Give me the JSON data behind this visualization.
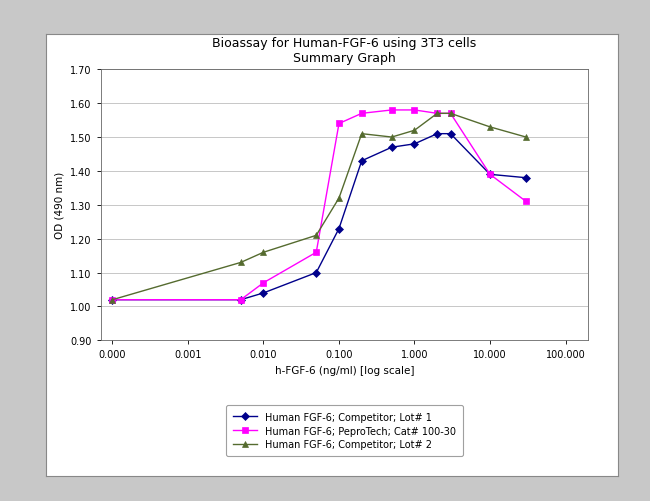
{
  "title_line1": "Bioassay for Human-FGF-6 using 3T3 cells",
  "title_line2": "Summary Graph",
  "xlabel": "h-FGF-6 (ng/ml) [log scale]",
  "ylabel": "OD (490 nm)",
  "ylim": [
    0.9,
    1.7
  ],
  "yticks": [
    0.9,
    1.0,
    1.1,
    1.2,
    1.3,
    1.4,
    1.5,
    1.6,
    1.7
  ],
  "series": [
    {
      "label": "Human FGF-6; Competitor; Lot# 1",
      "color": "#00008B",
      "marker": "D",
      "markersize": 4,
      "x": [
        0.0001,
        0.005,
        0.01,
        0.05,
        0.1,
        0.2,
        0.5,
        1.0,
        2.0,
        3.0,
        10.0,
        30.0
      ],
      "y": [
        1.02,
        1.02,
        1.04,
        1.1,
        1.23,
        1.43,
        1.47,
        1.48,
        1.51,
        1.51,
        1.39,
        1.38
      ]
    },
    {
      "label": "Human FGF-6; PeproTech; Cat# 100-30",
      "color": "#FF00FF",
      "marker": "s",
      "markersize": 4,
      "x": [
        0.0001,
        0.005,
        0.01,
        0.05,
        0.1,
        0.2,
        0.5,
        1.0,
        2.0,
        3.0,
        10.0,
        30.0
      ],
      "y": [
        1.02,
        1.02,
        1.07,
        1.16,
        1.54,
        1.57,
        1.58,
        1.58,
        1.57,
        1.57,
        1.39,
        1.31
      ]
    },
    {
      "label": "Human FGF-6; Competitor; Lot# 2",
      "color": "#556B2F",
      "marker": "^",
      "markersize": 4,
      "x": [
        0.0001,
        0.005,
        0.01,
        0.05,
        0.1,
        0.2,
        0.5,
        1.0,
        2.0,
        3.0,
        10.0,
        30.0
      ],
      "y": [
        1.02,
        1.13,
        1.16,
        1.21,
        1.32,
        1.51,
        1.5,
        1.52,
        1.57,
        1.57,
        1.53,
        1.5
      ]
    }
  ],
  "fig_bg_color": "#C8C8C8",
  "box_bg_color": "#FFFFFF",
  "plot_bg_color": "#FFFFFF",
  "grid_color": "#B0B0B0",
  "title_fontsize": 9,
  "axis_label_fontsize": 7.5,
  "tick_fontsize": 7,
  "legend_fontsize": 7
}
